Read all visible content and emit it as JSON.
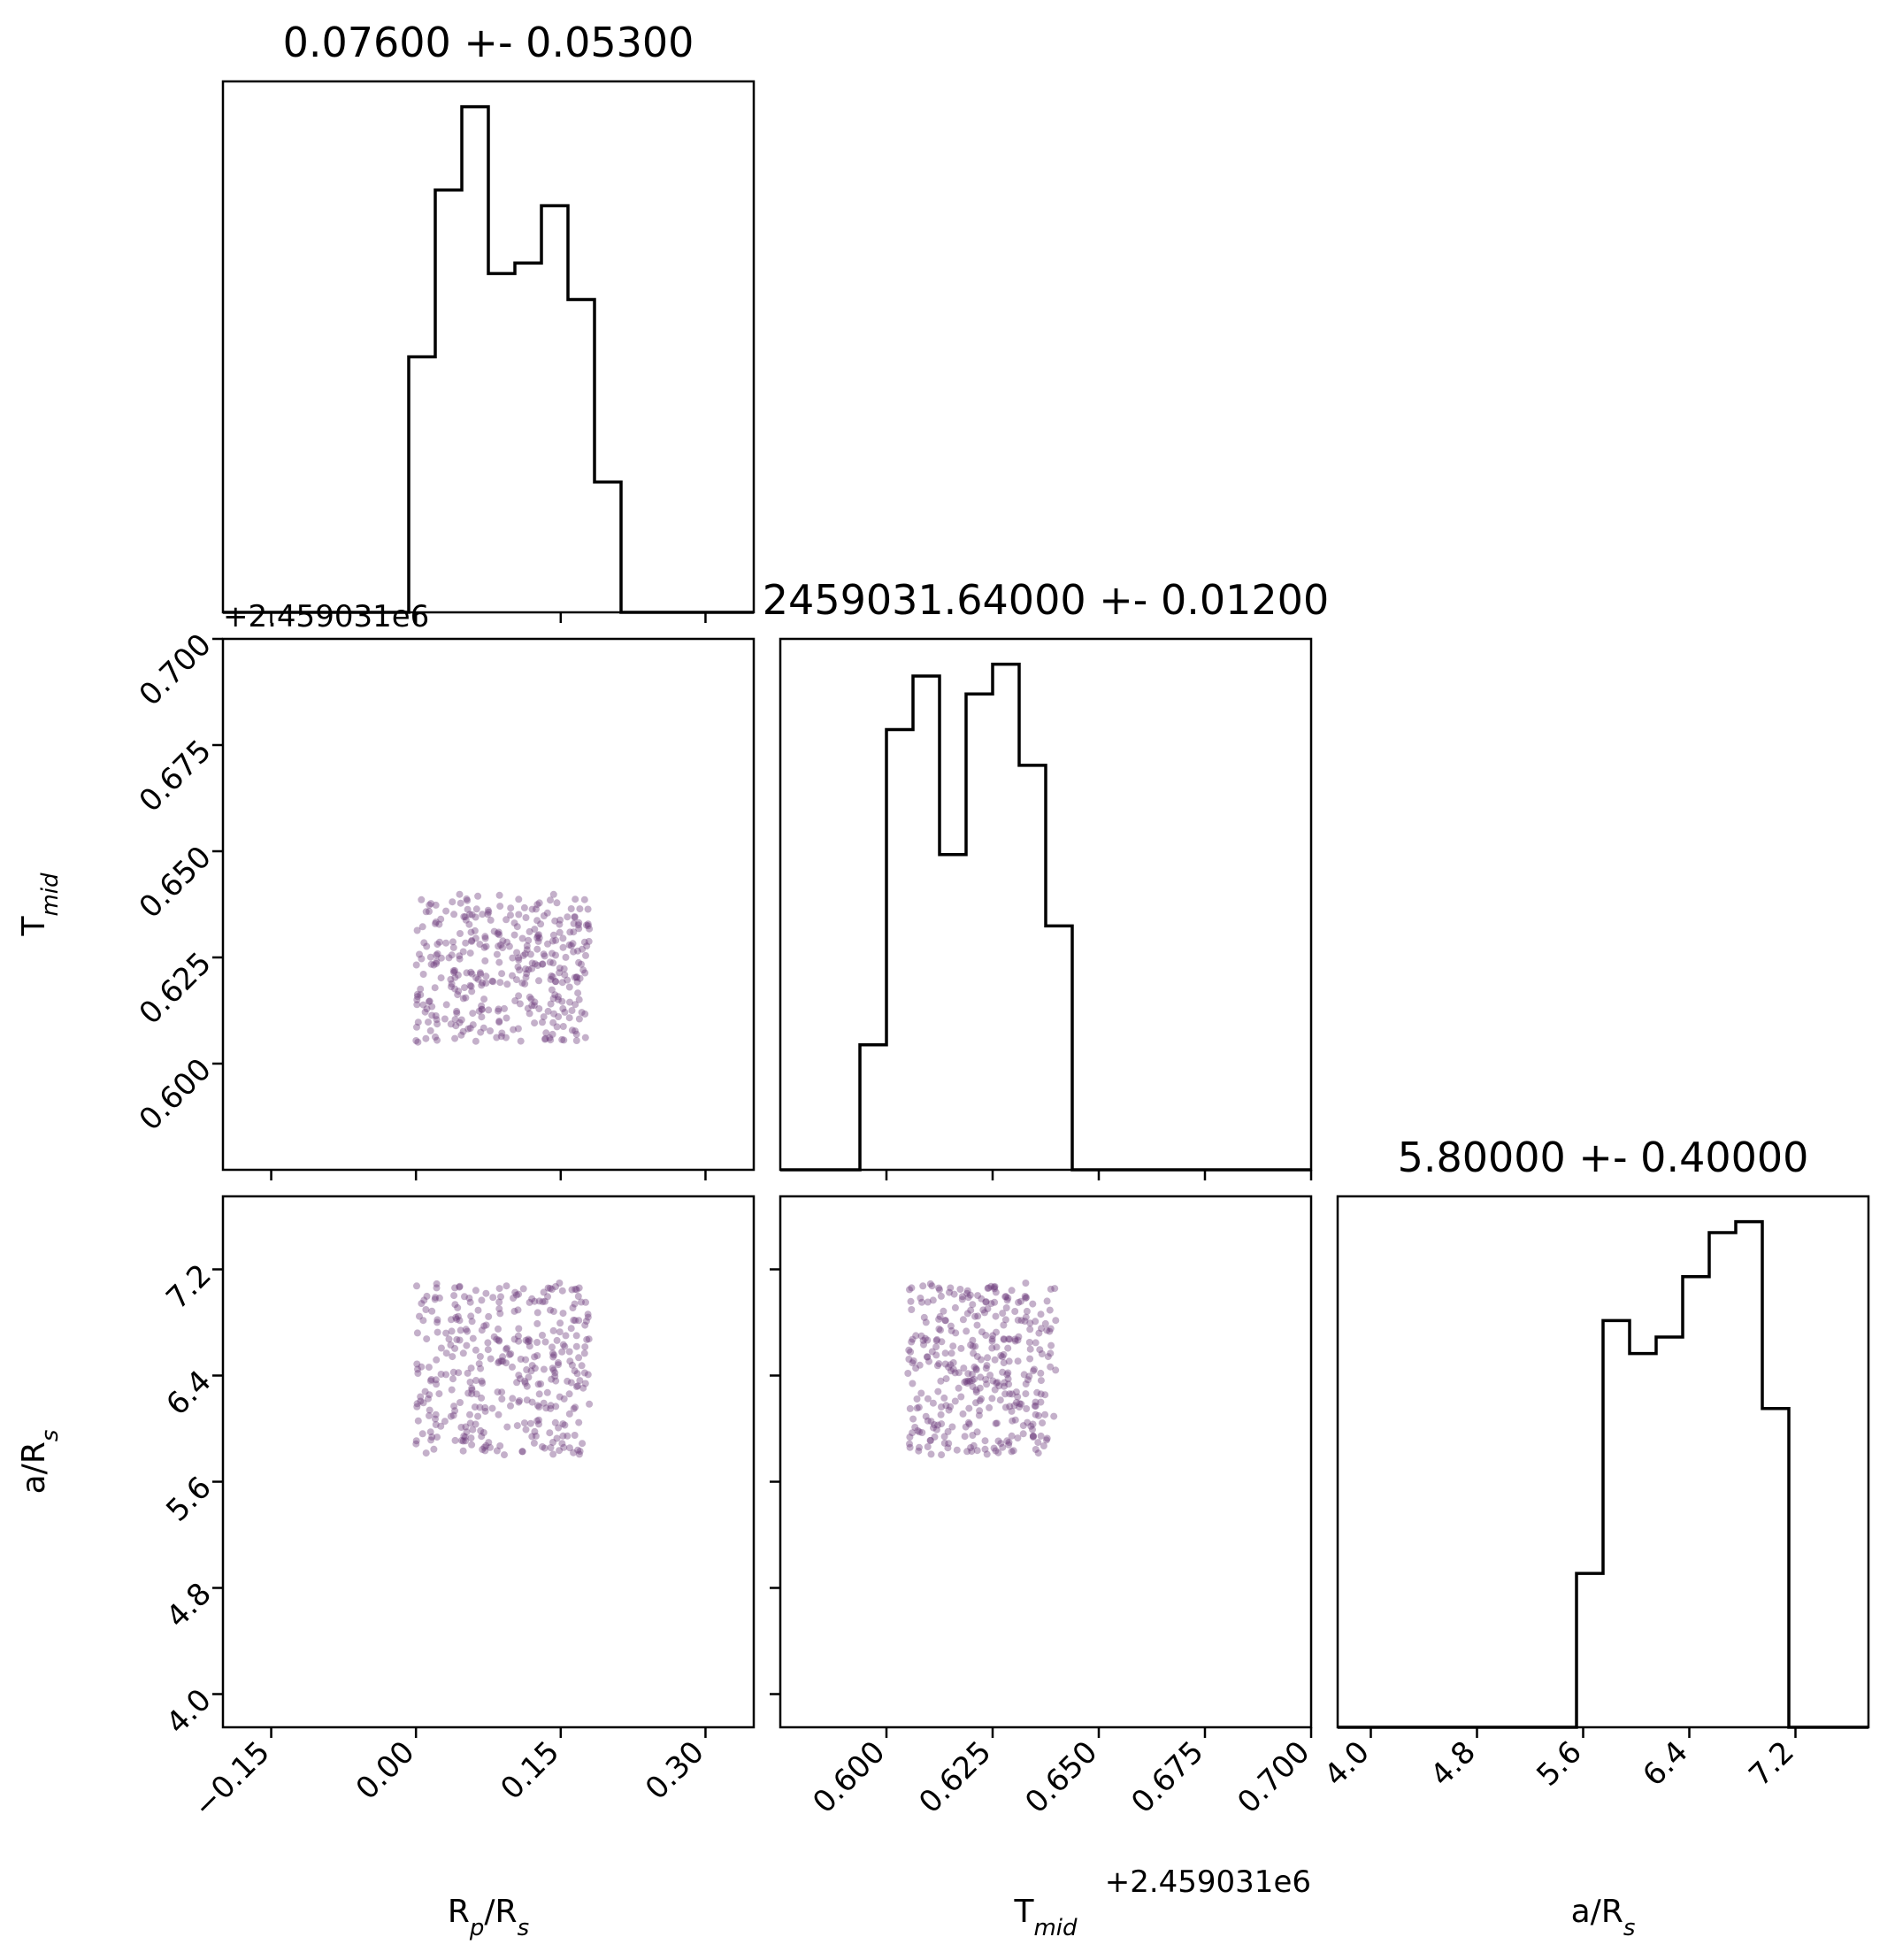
{
  "chart_data": {
    "type": "scatter",
    "kind": "corner plot",
    "parameters": [
      {
        "id": "rp",
        "label": "R",
        "sub": "p",
        "label2": "/R",
        "sub2": "s",
        "range": [
          -0.2,
          0.35
        ],
        "ticks": [
          "−0.15",
          "0.00",
          "0.15",
          "0.30"
        ],
        "tick_values": [
          -0.15,
          0.0,
          0.15,
          0.3
        ]
      },
      {
        "id": "tmid",
        "label": "T",
        "sub": "mid",
        "label2": "",
        "sub2": "",
        "range": [
          0.575,
          0.7
        ],
        "ticks": [
          "0.600",
          "0.625",
          "0.650",
          "0.675",
          "0.700"
        ],
        "tick_values": [
          0.6,
          0.625,
          0.65,
          0.675,
          0.7
        ],
        "offset": "+2.459031e6"
      },
      {
        "id": "ars",
        "label": "a/R",
        "sub": "s",
        "label2": "",
        "sub2": "",
        "range": [
          3.75,
          7.75
        ],
        "ticks": [
          "4.0",
          "4.8",
          "5.6",
          "6.4",
          "7.2"
        ],
        "tick_values": [
          4.0,
          4.8,
          5.6,
          6.4,
          7.2
        ]
      }
    ],
    "titles": [
      "0.07600 +- 0.05300",
      "2459031.64000 +- 0.01200",
      "5.80000 +- 0.40000"
    ],
    "histograms": [
      {
        "edges": [
          -0.2,
          -0.1725,
          -0.145,
          -0.1175,
          -0.09,
          -0.0625,
          -0.035,
          -0.0075,
          0.02,
          0.0475,
          0.075,
          0.1025,
          0.13,
          0.1575,
          0.185,
          0.2125,
          0.24,
          0.2675,
          0.295,
          0.3225,
          0.35
        ],
        "counts": [
          0,
          0,
          0,
          0,
          0,
          0,
          0,
          0.49,
          0.81,
          0.97,
          0.65,
          0.67,
          0.78,
          0.6,
          0.25,
          0,
          0,
          0,
          0,
          0
        ]
      },
      {
        "edges": [
          0.575,
          0.58125,
          0.5875,
          0.59375,
          0.6,
          0.60625,
          0.6125,
          0.61875,
          0.625,
          0.63125,
          0.6375,
          0.64375,
          0.65,
          0.65625,
          0.6625,
          0.66875,
          0.675,
          0.68125,
          0.6875,
          0.69375,
          0.7
        ],
        "counts": [
          0,
          0,
          0,
          0.21,
          0.74,
          0.83,
          0.53,
          0.8,
          0.85,
          0.68,
          0.41,
          0,
          0,
          0,
          0,
          0,
          0,
          0,
          0,
          0
        ]
      },
      {
        "edges": [
          3.75,
          3.95,
          4.15,
          4.35,
          4.55,
          4.75,
          4.95,
          5.15,
          5.35,
          5.55,
          5.75,
          5.95,
          6.15,
          6.35,
          6.55,
          6.75,
          6.95,
          7.15,
          7.35,
          7.55,
          7.75
        ],
        "counts": [
          0,
          0,
          0,
          0,
          0,
          0,
          0,
          0,
          0,
          0.28,
          0.74,
          0.68,
          0.71,
          0.82,
          0.9,
          0.92,
          0.58,
          0,
          0,
          0
        ]
      }
    ],
    "scatter_color": "#6b3a7a",
    "scatter_alpha": 0.4,
    "scatter_note": "samples uniformly filling rp 0.00–0.18, Tmid 0.605–0.640, a/R 5.80–7.10"
  }
}
